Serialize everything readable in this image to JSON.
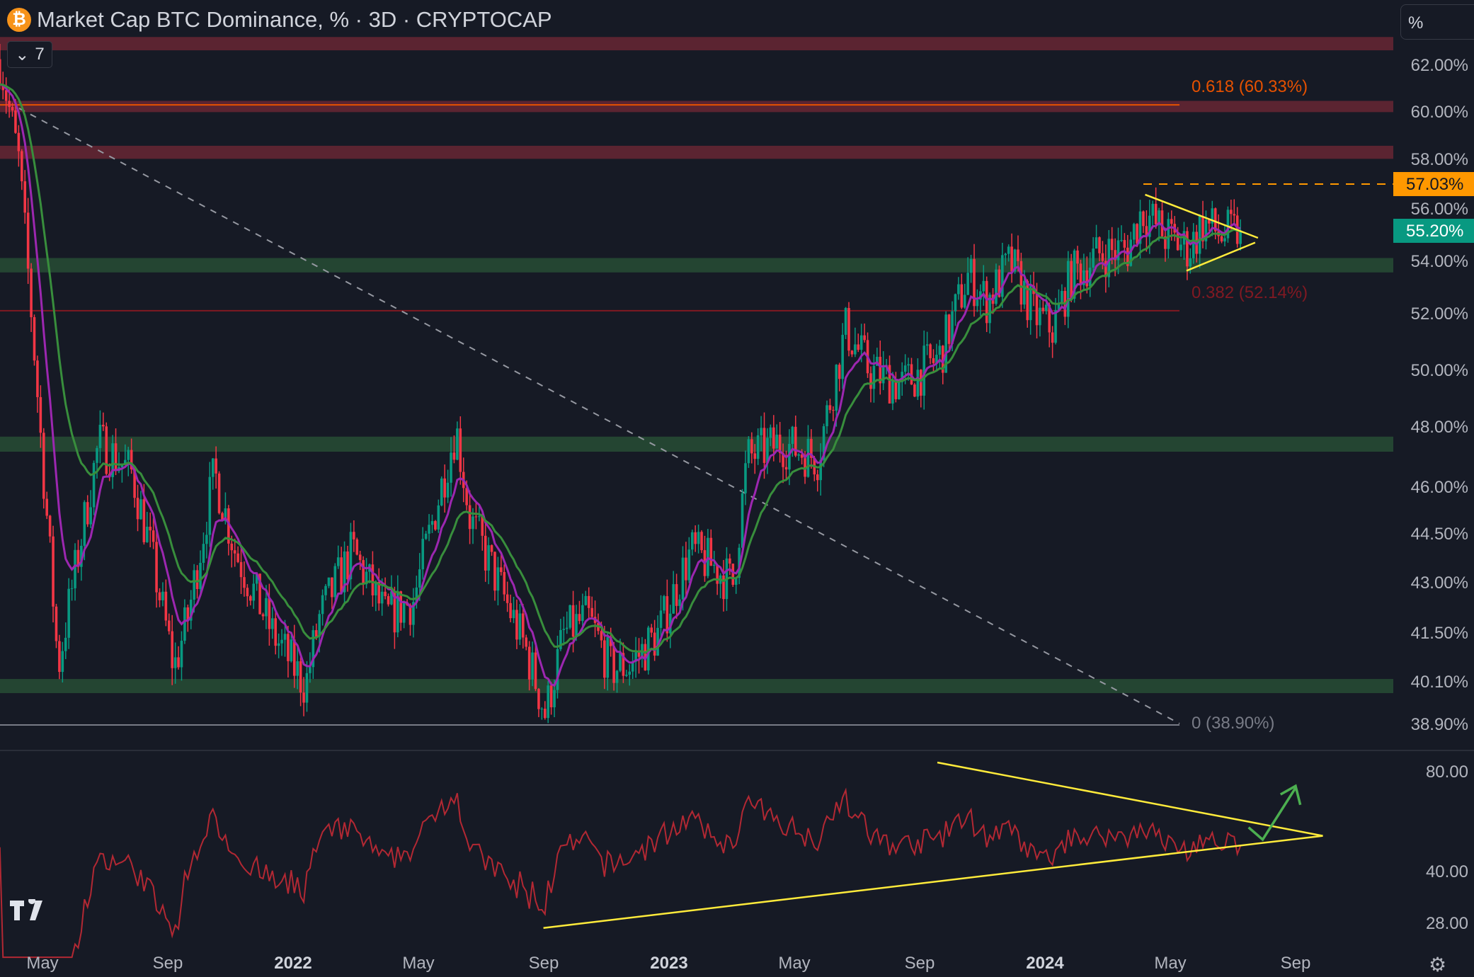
{
  "header": {
    "title": "Market Cap BTC Dominance, % · 3D · CRYPTOCAP",
    "symbol_icon": "bitcoin-icon",
    "indicators_count": "7",
    "scale_mode": "%"
  },
  "colors": {
    "bg": "#161a25",
    "up": "#089981",
    "down": "#f23645",
    "red_zone": "#5b2431",
    "green_zone": "#244532",
    "ema_fast": "#9c27b0",
    "ema_slow": "#388e3c",
    "rsi": "#b22833",
    "trend": "#ffeb3b",
    "high": "#ff9800"
  },
  "price_axis": [
    {
      "v": 62,
      "label": "62.00%"
    },
    {
      "v": 60,
      "label": "60.00%"
    },
    {
      "v": 58,
      "label": "58.00%"
    },
    {
      "v": 56,
      "label": "56.00%"
    },
    {
      "v": 54,
      "label": "54.00%"
    },
    {
      "v": 52,
      "label": "52.00%"
    },
    {
      "v": 50,
      "label": "50.00%"
    },
    {
      "v": 48,
      "label": "48.00%"
    },
    {
      "v": 46,
      "label": "46.00%"
    },
    {
      "v": 44.5,
      "label": "44.50%"
    },
    {
      "v": 43,
      "label": "43.00%"
    },
    {
      "v": 41.5,
      "label": "41.50%"
    },
    {
      "v": 40.1,
      "label": "40.10%"
    },
    {
      "v": 38.9,
      "label": "38.90%"
    }
  ],
  "badges": {
    "high": {
      "v": 57.03,
      "label": "57.03%"
    },
    "last": {
      "v": 55.2,
      "label": "55.20%"
    }
  },
  "fib": [
    {
      "level": "0.618 (60.33%)",
      "v": 60.33,
      "color": "#e65100"
    },
    {
      "level": "0.382 (52.14%)",
      "v": 52.14,
      "color": "#801922"
    },
    {
      "level": "0 (38.90%)",
      "v": 38.9,
      "color": "#787b86"
    }
  ],
  "zones": [
    {
      "type": "red",
      "from": 62.7,
      "to": 63.3
    },
    {
      "type": "red",
      "from": 60.02,
      "to": 60.5
    },
    {
      "type": "red",
      "from": 58.05,
      "to": 58.6
    },
    {
      "type": "green",
      "from": 53.6,
      "to": 54.15
    },
    {
      "type": "green",
      "from": 47.2,
      "to": 47.7
    },
    {
      "type": "green",
      "from": 39.8,
      "to": 40.2
    }
  ],
  "rsi_axis": [
    {
      "v": 80,
      "label": "80.00"
    },
    {
      "v": 40,
      "label": "40.00"
    },
    {
      "v": 28,
      "label": "28.00"
    }
  ],
  "time_axis": [
    {
      "label": "May",
      "m": 4,
      "bold": false
    },
    {
      "label": "Sep",
      "m": 8,
      "bold": false
    },
    {
      "label": "2022",
      "m": 12,
      "bold": true
    },
    {
      "label": "May",
      "m": 16,
      "bold": false
    },
    {
      "label": "Sep",
      "m": 20,
      "bold": false
    },
    {
      "label": "2023",
      "m": 24,
      "bold": true
    },
    {
      "label": "May",
      "m": 28,
      "bold": false
    },
    {
      "label": "Sep",
      "m": 32,
      "bold": false
    },
    {
      "label": "2024",
      "m": 36,
      "bold": true
    },
    {
      "label": "May",
      "m": 40,
      "bold": false
    },
    {
      "label": "Sep",
      "m": 44,
      "bold": false
    }
  ],
  "price_path": [
    [
      2.64,
      62.3
    ],
    [
      3.24,
      58
    ],
    [
      3.99,
      47
    ],
    [
      4.5,
      40.5
    ],
    [
      5.35,
      45
    ],
    [
      5.8,
      47.5
    ],
    [
      6.85,
      46.5
    ],
    [
      7.45,
      44
    ],
    [
      8.2,
      40.5
    ],
    [
      8.65,
      42
    ],
    [
      9.49,
      46.5
    ],
    [
      10.15,
      44
    ],
    [
      11.35,
      41.5
    ],
    [
      12.4,
      40
    ],
    [
      12.85,
      42
    ],
    [
      13.9,
      44
    ],
    [
      14.95,
      42
    ],
    [
      15.85,
      42.5
    ],
    [
      16.6,
      45.5
    ],
    [
      17.2,
      48
    ],
    [
      17.65,
      45
    ],
    [
      18.55,
      43
    ],
    [
      19.45,
      41
    ],
    [
      20.05,
      39.2
    ],
    [
      20.65,
      41.5
    ],
    [
      21.4,
      42
    ],
    [
      22.15,
      40.5
    ],
    [
      22.75,
      40.6
    ],
    [
      23.65,
      41.5
    ],
    [
      24.7,
      44
    ],
    [
      25.45,
      43.5
    ],
    [
      26.05,
      43
    ],
    [
      26.5,
      47
    ],
    [
      27.55,
      47.5
    ],
    [
      28.75,
      47
    ],
    [
      29.65,
      51.5
    ],
    [
      30.4,
      50
    ],
    [
      31.45,
      49.5
    ],
    [
      32.65,
      50.5
    ],
    [
      33.55,
      53.5
    ],
    [
      34.15,
      52.5
    ],
    [
      34.9,
      54
    ],
    [
      35.65,
      52
    ],
    [
      36.25,
      51.5
    ],
    [
      36.85,
      53.5
    ],
    [
      37.75,
      54.3
    ],
    [
      38.65,
      54.5
    ],
    [
      39.1,
      56
    ],
    [
      39.85,
      55
    ],
    [
      40.6,
      54.5
    ],
    [
      41.05,
      55.5
    ],
    [
      41.65,
      55
    ],
    [
      42.25,
      55.2
    ]
  ]
}
